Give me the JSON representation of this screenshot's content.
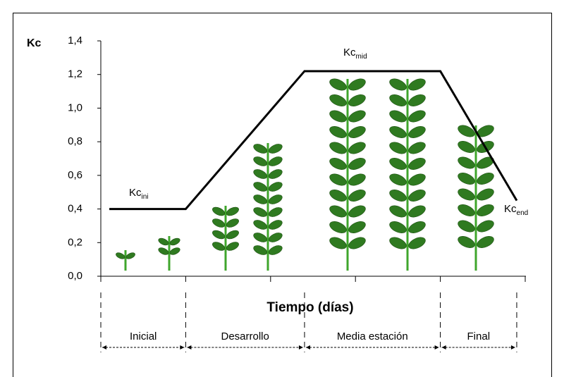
{
  "chart_data": {
    "type": "line",
    "y_label": "Kc",
    "x_label": "Tiempo (días)",
    "x": [
      2,
      20,
      48,
      80,
      98
    ],
    "values": [
      0.4,
      0.4,
      1.22,
      1.22,
      0.45
    ],
    "color": "#000000",
    "xlim": [
      0,
      100
    ],
    "xticks": [
      0,
      20,
      40,
      60,
      80,
      100
    ],
    "ylim": [
      0,
      1.4
    ],
    "yticks": [
      {
        "value": 0,
        "label": "0,0"
      },
      {
        "value": 0.2,
        "label": "0,2"
      },
      {
        "value": 0.4,
        "label": "0,4"
      },
      {
        "value": 0.6,
        "label": "0,6"
      },
      {
        "value": 0.8,
        "label": "0,8"
      },
      {
        "value": 1.0,
        "label": "1,0"
      },
      {
        "value": 1.2,
        "label": "1,2"
      },
      {
        "value": 1.4,
        "label": "1,4"
      }
    ],
    "annotations": [
      {
        "text": "Kc",
        "sub": "ini"
      },
      {
        "text": "Kc",
        "sub": "mid"
      },
      {
        "text": "Kc",
        "sub": "end"
      }
    ],
    "stages": [
      {
        "name": "Inicial",
        "start": 0,
        "end": 20
      },
      {
        "name": "Desarrollo",
        "start": 20,
        "end": 48
      },
      {
        "name": "Media estación",
        "start": 48,
        "end": 80
      },
      {
        "name": "Final",
        "start": 80,
        "end": 98
      }
    ]
  }
}
